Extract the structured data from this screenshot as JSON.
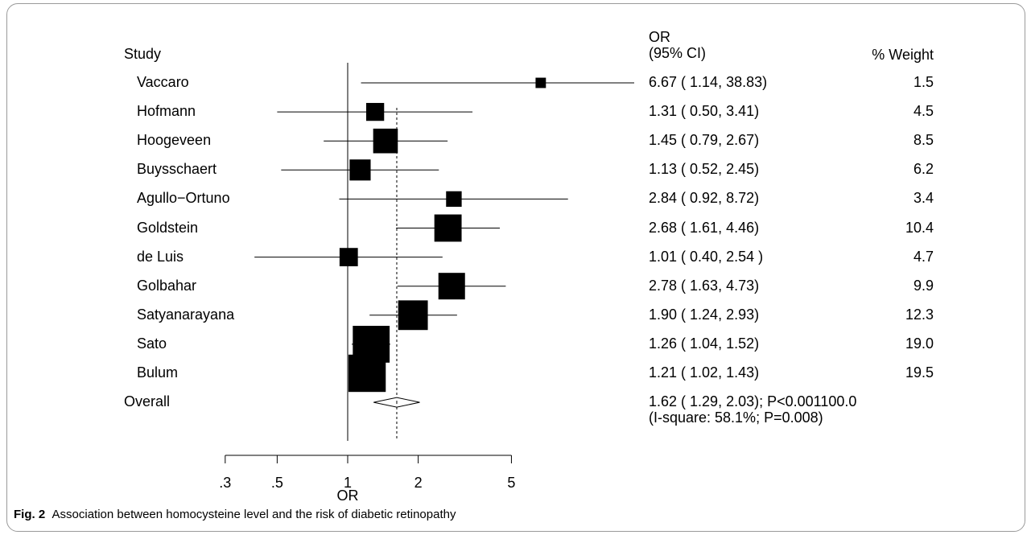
{
  "headers": {
    "study": "Study",
    "or_line1": "OR",
    "or_line2": "(95% CI)",
    "weight": "% Weight"
  },
  "caption": {
    "label": "Fig. 2",
    "text": "Association between homocysteine level and the risk of diabetic retinopathy"
  },
  "chart_data": {
    "type": "forest",
    "xlabel": "OR",
    "xscale": "log",
    "xlim": [
      0.3,
      5
    ],
    "xticks": [
      0.3,
      0.5,
      1,
      2,
      5
    ],
    "xtick_labels": [
      ".3",
      ".5",
      "1",
      "2",
      "5"
    ],
    "null_line": 1,
    "overall_line": 1.62,
    "studies": [
      {
        "name": "Vaccaro",
        "or": 6.67,
        "lo": 1.14,
        "hi": 38.83,
        "ci_text": "6.67 ( 1.14, 38.83)",
        "weight": 1.5,
        "weight_text": "1.5"
      },
      {
        "name": "Hofmann",
        "or": 1.31,
        "lo": 0.5,
        "hi": 3.41,
        "ci_text": "1.31 ( 0.50, 3.41)",
        "weight": 4.5,
        "weight_text": "4.5"
      },
      {
        "name": "Hoogeveen",
        "or": 1.45,
        "lo": 0.79,
        "hi": 2.67,
        "ci_text": "1.45 ( 0.79, 2.67)",
        "weight": 8.5,
        "weight_text": "8.5"
      },
      {
        "name": "Buysschaert",
        "or": 1.13,
        "lo": 0.52,
        "hi": 2.45,
        "ci_text": "1.13 ( 0.52, 2.45)",
        "weight": 6.2,
        "weight_text": "6.2"
      },
      {
        "name": "Agullo−Ortuno",
        "or": 2.84,
        "lo": 0.92,
        "hi": 8.72,
        "ci_text": "2.84 ( 0.92, 8.72)",
        "weight": 3.4,
        "weight_text": "3.4"
      },
      {
        "name": "Goldstein",
        "or": 2.68,
        "lo": 1.61,
        "hi": 4.46,
        "ci_text": "2.68 ( 1.61, 4.46)",
        "weight": 10.4,
        "weight_text": "10.4"
      },
      {
        "name": "de Luis",
        "or": 1.01,
        "lo": 0.4,
        "hi": 2.54,
        "ci_text": "1.01 ( 0.40, 2.54 )",
        "weight": 4.7,
        "weight_text": "4.7"
      },
      {
        "name": "Golbahar",
        "or": 2.78,
        "lo": 1.63,
        "hi": 4.73,
        "ci_text": "2.78 ( 1.63, 4.73)",
        "weight": 9.9,
        "weight_text": "9.9"
      },
      {
        "name": "Satyanarayana",
        "or": 1.9,
        "lo": 1.24,
        "hi": 2.93,
        "ci_text": "1.90 ( 1.24, 2.93)",
        "weight": 12.3,
        "weight_text": "12.3"
      },
      {
        "name": "Sato",
        "or": 1.26,
        "lo": 1.04,
        "hi": 1.52,
        "ci_text": "1.26 ( 1.04, 1.52)",
        "weight": 19.0,
        "weight_text": "19.0"
      },
      {
        "name": "Bulum",
        "or": 1.21,
        "lo": 1.02,
        "hi": 1.43,
        "ci_text": "1.21 ( 1.02, 1.43)",
        "weight": 19.5,
        "weight_text": "19.5"
      }
    ],
    "overall": {
      "name": "Overall",
      "or": 1.62,
      "lo": 1.29,
      "hi": 2.03,
      "ci_text": "1.62 ( 1.29, 2.03); P<0.001100.0",
      "heterogeneity_text": "(I-square: 58.1%; P=0.008)"
    }
  }
}
